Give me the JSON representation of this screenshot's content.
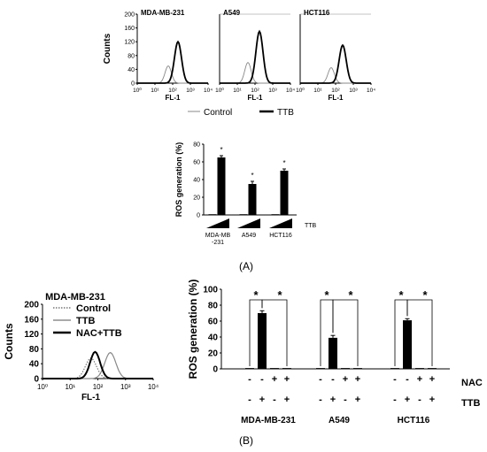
{
  "panel_a_label": "(A)",
  "panel_b_label": "(B)",
  "chart_data": [
    {
      "type": "line",
      "chart": "flow-histogram",
      "panels": [
        "MDA-MB-231",
        "A549",
        "HCT116"
      ],
      "ylabel": "Counts",
      "xlabel": "FL-1",
      "x_scale": "log",
      "xlim": [
        1,
        10000
      ],
      "x_tick_labels": [
        "10⁰",
        "10¹",
        "10²",
        "10³",
        "10⁴"
      ],
      "ylim": [
        0,
        200
      ],
      "y_ticks": [
        "0",
        "40",
        "80",
        "120",
        "160",
        "200"
      ],
      "series": [
        {
          "name": "Control",
          "style": "thin-gray",
          "peaks": [
            50,
            60,
            45
          ]
        },
        {
          "name": "TTB",
          "style": "thick-black",
          "peaks": [
            120,
            150,
            110
          ]
        }
      ],
      "legend": "bottom"
    },
    {
      "type": "bar",
      "categories": [
        "MDA-MB\n-231",
        "A549",
        "HCT116"
      ],
      "conditions": [
        "control",
        "TTB"
      ],
      "values": [
        [
          0,
          65
        ],
        [
          0,
          35
        ],
        [
          0,
          50
        ]
      ],
      "errors": [
        [
          0,
          2
        ],
        [
          0,
          3
        ],
        [
          0,
          2
        ]
      ],
      "significance": [
        "*",
        "*",
        "*"
      ],
      "ylabel": "ROS generation (%)",
      "ylim": [
        0,
        80
      ],
      "y_ticks": [
        "0",
        "20",
        "40",
        "60",
        "80"
      ],
      "treatment_label": "TTB"
    },
    {
      "type": "line",
      "chart": "flow-histogram",
      "title": "MDA-MB-231",
      "ylabel": "Counts",
      "xlabel": "FL-1",
      "x_scale": "log",
      "xlim": [
        1,
        10000
      ],
      "x_tick_labels": [
        "10⁰",
        "10¹",
        "10²",
        "10³",
        "10⁴"
      ],
      "ylim": [
        0,
        200
      ],
      "y_ticks": [
        "0",
        "40",
        "80",
        "120",
        "160",
        "200"
      ],
      "series": [
        {
          "name": "Control",
          "style": "dotted"
        },
        {
          "name": "TTB",
          "style": "thin-gray"
        },
        {
          "name": "NAC+TTB",
          "style": "thick-black"
        }
      ],
      "legend": "top-right"
    },
    {
      "type": "bar",
      "groups": [
        "MDA-MB-231",
        "A549",
        "HCT116"
      ],
      "conditions": [
        {
          "NAC": "-",
          "TTB": "-"
        },
        {
          "NAC": "-",
          "TTB": "+"
        },
        {
          "NAC": "+",
          "TTB": "-"
        },
        {
          "NAC": "+",
          "TTB": "+"
        }
      ],
      "values": [
        [
          1,
          70,
          1,
          1
        ],
        [
          1,
          39,
          1,
          1
        ],
        [
          1,
          61,
          1,
          1
        ]
      ],
      "errors": [
        [
          0.5,
          3,
          0.5,
          0.5
        ],
        [
          0.5,
          3,
          0.5,
          0.5
        ],
        [
          0.5,
          2,
          0.5,
          0.5
        ]
      ],
      "significance": [
        "*",
        "*"
      ],
      "row_labels": [
        "NAC",
        "TTB"
      ],
      "ylabel": "ROS generation (%)",
      "ylim": [
        0,
        100
      ],
      "y_ticks": [
        "0",
        "20",
        "40",
        "60",
        "80",
        "100"
      ]
    }
  ]
}
